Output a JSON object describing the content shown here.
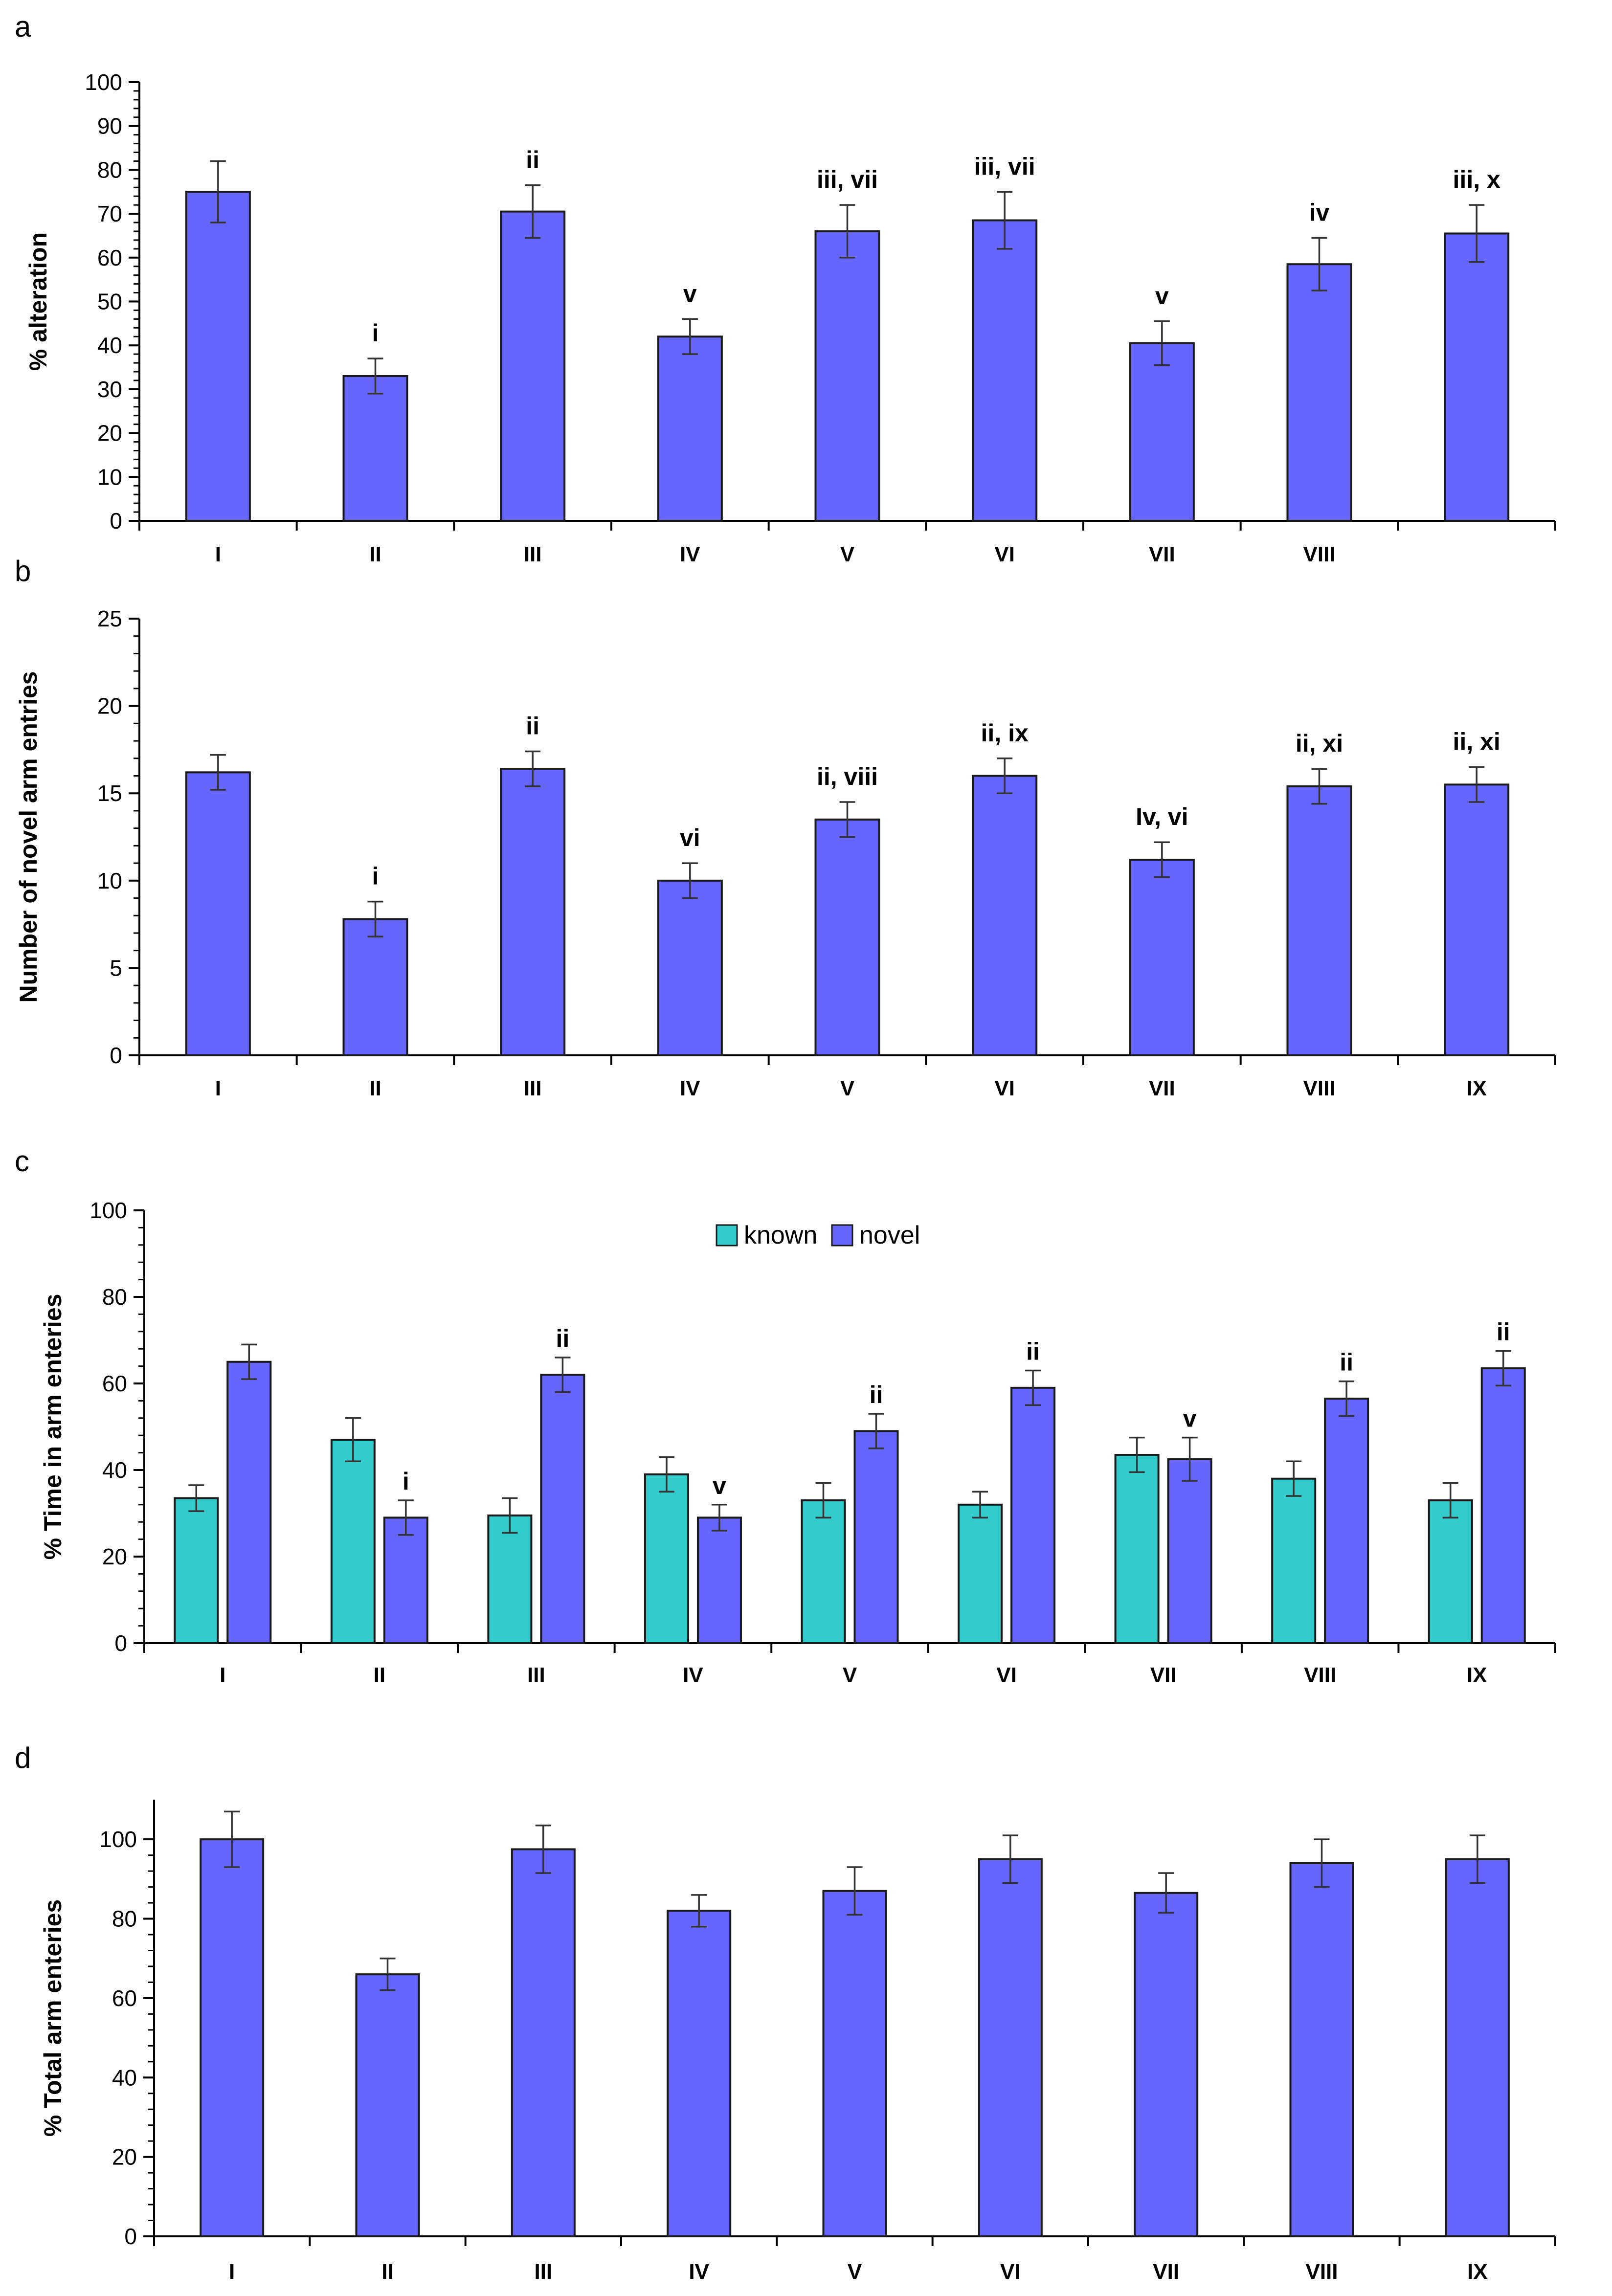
{
  "colors": {
    "novel": "#6666ff",
    "known": "#33cccc",
    "outline": "#1a1a1a",
    "axis": "#000000"
  },
  "chart_data": [
    {
      "panel": "a",
      "type": "bar",
      "ylabel": "% alteration",
      "ylim": [
        0,
        100
      ],
      "yticks": [
        0,
        10,
        20,
        30,
        40,
        50,
        60,
        70,
        80,
        90,
        100
      ],
      "slots": 9,
      "categories": [
        "I",
        "II",
        "III",
        "IV",
        "V",
        "VI",
        "VII",
        "VIII",
        ""
      ],
      "series": [
        {
          "name": "novel",
          "values": [
            75,
            33,
            70.5,
            42,
            66,
            68.5,
            40.5,
            58.5,
            65.5
          ],
          "errors": [
            7,
            4,
            6,
            4,
            6,
            6.5,
            5,
            6,
            6.5
          ]
        }
      ],
      "annotations": [
        "",
        "i",
        "ii",
        "v",
        "iii, vii",
        "iii, vii",
        "v",
        "iv",
        "iii, x"
      ]
    },
    {
      "panel": "b",
      "type": "bar",
      "ylabel": "Number of novel arm entries",
      "ylim": [
        0,
        25
      ],
      "yticks": [
        0,
        5,
        10,
        15,
        20,
        25
      ],
      "slots": 9,
      "categories": [
        "I",
        "II",
        "III",
        "IV",
        "V",
        "VI",
        "VII",
        "VIII",
        "IX"
      ],
      "series": [
        {
          "name": "novel",
          "values": [
            16.2,
            7.8,
            16.4,
            10,
            13.5,
            16,
            11.2,
            15.4,
            15.5
          ],
          "errors": [
            1,
            1,
            1,
            1,
            1,
            1,
            1,
            1,
            1
          ]
        }
      ],
      "annotations": [
        "",
        "i",
        "ii",
        "vi",
        "ii, viii",
        "ii, ix",
        "Iv, vi",
        "ii, xi",
        "ii, xi"
      ]
    },
    {
      "panel": "c",
      "type": "bar",
      "ylabel": "% Time in arm enteries",
      "ylim": [
        0,
        100
      ],
      "yticks": [
        0,
        20,
        40,
        60,
        80,
        100
      ],
      "slots": 9,
      "categories": [
        "I",
        "II",
        "III",
        "IV",
        "V",
        "VI",
        "VII",
        "VIII",
        "IX"
      ],
      "legend": [
        "known",
        "novel"
      ],
      "series": [
        {
          "name": "known",
          "values": [
            33.5,
            47,
            29.5,
            39,
            33,
            32,
            43.5,
            38,
            33
          ],
          "errors": [
            3,
            5,
            4,
            4,
            4,
            3,
            4,
            4,
            4
          ]
        },
        {
          "name": "novel",
          "values": [
            65,
            29,
            62,
            29,
            49,
            59,
            42.5,
            56.5,
            63.5
          ],
          "errors": [
            4,
            4,
            4,
            3,
            4,
            4,
            5,
            4,
            4
          ]
        }
      ],
      "annotations": [
        "",
        "i",
        "ii",
        "v",
        "ii",
        "ii",
        "v",
        "ii",
        "ii"
      ]
    },
    {
      "panel": "d",
      "type": "bar",
      "ylabel": "% Total arm enteries",
      "ylim": [
        0,
        110
      ],
      "yticks": [
        0,
        20,
        40,
        60,
        80,
        100
      ],
      "slots": 9,
      "categories": [
        "I",
        "II",
        "III",
        "IV",
        "V",
        "VI",
        "VII",
        "VIII",
        "IX"
      ],
      "series": [
        {
          "name": "novel",
          "values": [
            100,
            66,
            97.5,
            82,
            87,
            95,
            86.5,
            94,
            95
          ],
          "errors": [
            7,
            4,
            6,
            4,
            6,
            6,
            5,
            6,
            6
          ]
        }
      ],
      "annotations": [
        "",
        "",
        "",
        "",
        "",
        "",
        "",
        "",
        ""
      ]
    }
  ]
}
